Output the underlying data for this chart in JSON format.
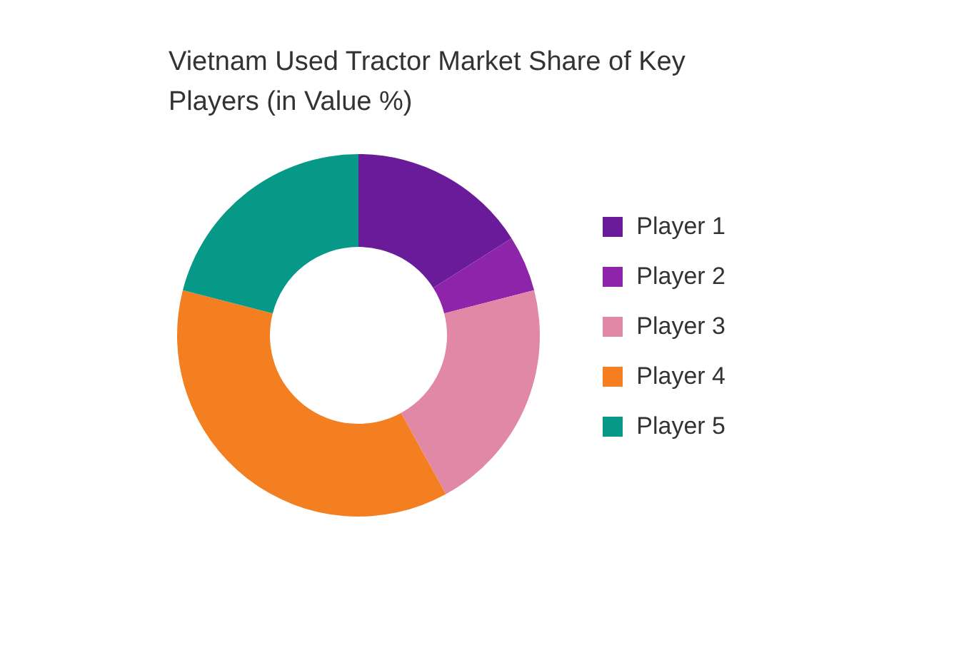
{
  "chart_data": {
    "type": "donut",
    "title": "Vietnam Used Tractor Market Share of Key Players (in Value %)",
    "categories": [
      "Player 1",
      "Player 2",
      "Player 3",
      "Player 4",
      "Player 5"
    ],
    "values": [
      16,
      5,
      21,
      37,
      21
    ],
    "colors": [
      "#6a1b9a",
      "#8e24aa",
      "#e088a6",
      "#f47f20",
      "#079987"
    ],
    "legend": "right"
  }
}
